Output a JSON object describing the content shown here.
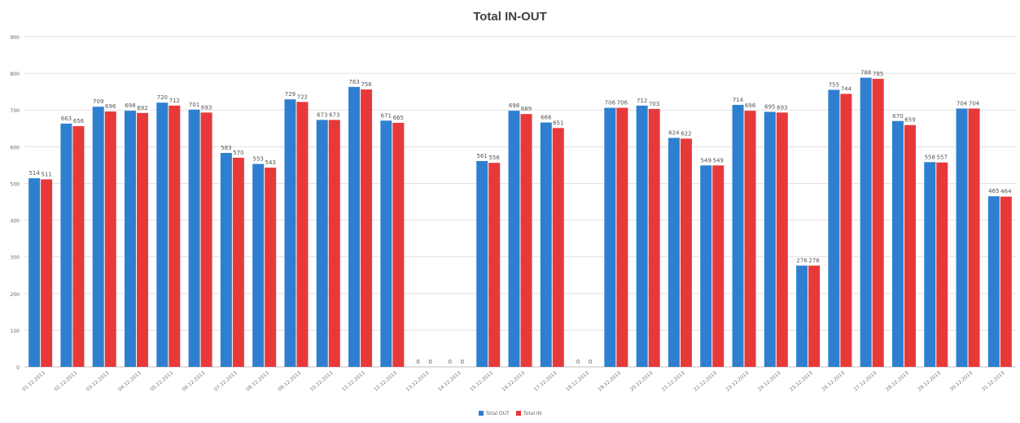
{
  "chart_data": {
    "type": "bar",
    "title": "Total IN-OUT",
    "xlabel": "",
    "ylabel": "",
    "ylim": [
      0,
      900
    ],
    "yticks": [
      0,
      100,
      200,
      300,
      400,
      500,
      600,
      700,
      800,
      900
    ],
    "grid": true,
    "legend_position": "bottom",
    "categories": [
      "01.12.2013",
      "02.12.2013",
      "03.12.2013",
      "04.12.2013",
      "05.12.2013",
      "06.12.2013",
      "07.12.2013",
      "08.12.2013",
      "09.12.2013",
      "10.12.2013",
      "11.12.2013",
      "12.12.2013",
      "13.12.2013",
      "14.12.2013",
      "15.12.2013",
      "16.12.2013",
      "17.12.2013",
      "18.12.2013",
      "19.12.2013",
      "20.12.2013",
      "21.12.2013",
      "22.12.2013",
      "23.12.2013",
      "24.12.2013",
      "25.12.2013",
      "26.12.2013",
      "27.12.2013",
      "28.12.2013",
      "29.12.2013",
      "30.12.2013",
      "31.12.2013"
    ],
    "series": [
      {
        "name": "Total OUT",
        "color": "#2f7fd0",
        "values": [
          514,
          663,
          709,
          698,
          720,
          701,
          583,
          553,
          729,
          673,
          763,
          671,
          0,
          0,
          561,
          698,
          666,
          0,
          706,
          712,
          624,
          549,
          714,
          695,
          276,
          755,
          788,
          670,
          558,
          704,
          465
        ],
        "labels": [
          "514",
          "663",
          "709",
          "698",
          "720",
          "701",
          "583",
          "553",
          "729",
          "673",
          "763",
          "671",
          "0",
          "0",
          "561",
          "698",
          "666",
          "0",
          "706",
          "712",
          "624",
          "549",
          "714",
          "695",
          "276",
          "755",
          "788",
          "670",
          "558",
          "704",
          "465"
        ]
      },
      {
        "name": "Total IN",
        "color": "#e8393a",
        "values": [
          511,
          656,
          696,
          692,
          712,
          693,
          570,
          543,
          722,
          673,
          756,
          665,
          0,
          0,
          556,
          689,
          651,
          0,
          706,
          703,
          622,
          549,
          698,
          693,
          276,
          744,
          785,
          659,
          557,
          704,
          464
        ],
        "labels": [
          "511",
          "656",
          "696",
          "692",
          "712",
          "693",
          "570",
          "543",
          "722",
          "673",
          "756",
          "665",
          "0",
          "0",
          "556",
          "689",
          "651",
          "0",
          "706",
          "703",
          "622",
          "549",
          "698",
          "693",
          "276",
          "744",
          "785",
          "659",
          "557",
          "704",
          "464"
        ]
      }
    ]
  }
}
